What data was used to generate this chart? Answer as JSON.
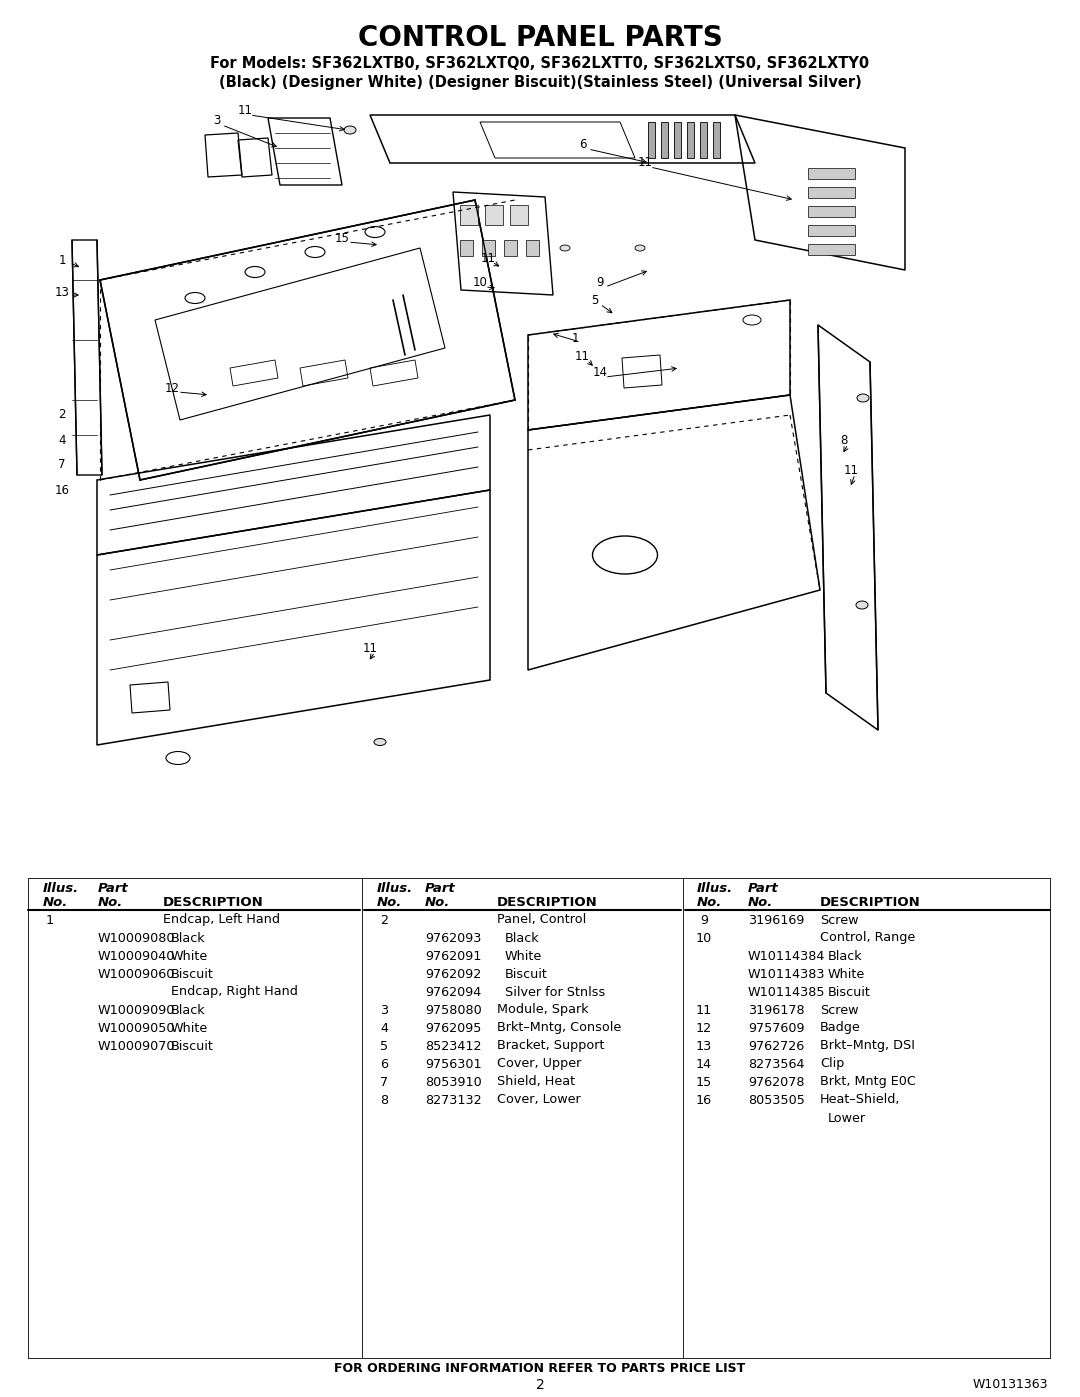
{
  "title": "CONTROL PANEL PARTS",
  "subtitle1": "For Models: SF362LXTB0, SF362LXTQ0, SF362LXTT0, SF362LXTS0, SF362LXTY0",
  "subtitle2": "(Black) (Designer White) (Designer Biscuit)(Stainless Steel) (Universal Silver)",
  "footer_order": "FOR ORDERING INFORMATION REFER TO PARTS PRICE LIST",
  "footer_page": "2",
  "footer_doc": "W10131363",
  "bg_color": "#ffffff",
  "col1_data": [
    [
      "1",
      "",
      "Endcap, Left Hand"
    ],
    [
      "",
      "W10009080",
      "Black"
    ],
    [
      "",
      "W10009040",
      "White"
    ],
    [
      "",
      "W10009060",
      "Biscuit"
    ],
    [
      "",
      "",
      "Endcap, Right Hand"
    ],
    [
      "",
      "W10009090",
      "Black"
    ],
    [
      "",
      "W10009050",
      "White"
    ],
    [
      "",
      "W10009070",
      "Biscuit"
    ]
  ],
  "col2_data": [
    [
      "2",
      "",
      "Panel, Control"
    ],
    [
      "",
      "9762093",
      "Black"
    ],
    [
      "",
      "9762091",
      "White"
    ],
    [
      "",
      "9762092",
      "Biscuit"
    ],
    [
      "",
      "9762094",
      "Silver for Stnlss"
    ],
    [
      "3",
      "9758080",
      "Module, Spark"
    ],
    [
      "4",
      "9762095",
      "Brkt–Mntg, Console"
    ],
    [
      "5",
      "8523412",
      "Bracket, Support"
    ],
    [
      "6",
      "9756301",
      "Cover, Upper"
    ],
    [
      "7",
      "8053910",
      "Shield, Heat"
    ],
    [
      "8",
      "8273132",
      "Cover, Lower"
    ]
  ],
  "col3_data": [
    [
      "9",
      "3196169",
      "Screw"
    ],
    [
      "10",
      "",
      "Control, Range"
    ],
    [
      "",
      "W10114384",
      "Black"
    ],
    [
      "",
      "W10114383",
      "White"
    ],
    [
      "",
      "W10114385",
      "Biscuit"
    ],
    [
      "11",
      "3196178",
      "Screw"
    ],
    [
      "12",
      "9757609",
      "Badge"
    ],
    [
      "13",
      "9762726",
      "Brkt–Mntg, DSI"
    ],
    [
      "14",
      "8273564",
      "Clip"
    ],
    [
      "15",
      "9762078",
      "Brkt, Mntg E0C"
    ],
    [
      "16",
      "8053505",
      "Heat–Shield,"
    ],
    [
      "",
      "",
      "Lower"
    ]
  ]
}
